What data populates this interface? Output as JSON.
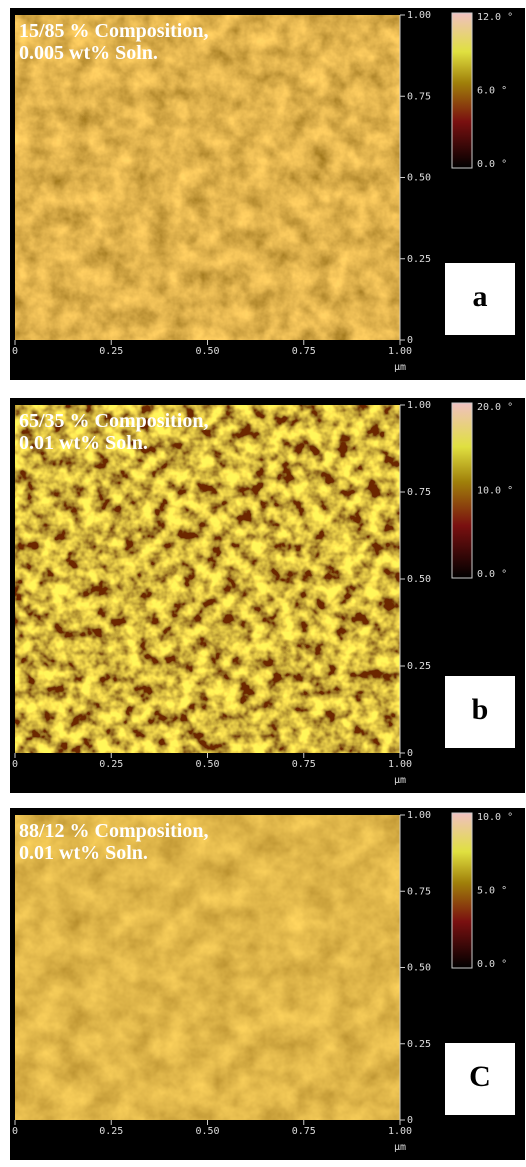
{
  "panels": [
    {
      "title": [
        "15/85 % Composition,",
        "0.005 wt% Soln."
      ],
      "x_ticks": [
        "0",
        "0.25",
        "0.50",
        "0.75",
        "1.00"
      ],
      "y_ticks": [
        "1.00",
        "0.75",
        "0.50",
        "0.25",
        "0"
      ],
      "unit": "µm",
      "colorbar": [
        "12.0 °",
        "6.0 °",
        "0.0 °"
      ],
      "label": "a"
    },
    {
      "title": [
        "65/35 % Composition,",
        "0.01 wt% Soln."
      ],
      "x_ticks": [
        "0",
        "0.25",
        "0.50",
        "0.75",
        "1.00"
      ],
      "y_ticks": [
        "1.00",
        "0.75",
        "0.50",
        "0.25",
        "0"
      ],
      "unit": "µm",
      "colorbar": [
        "20.0 °",
        "10.0 °",
        "0.0 °"
      ],
      "label": "b"
    },
    {
      "title": [
        "88/12 % Composition,",
        "0.01 wt% Soln."
      ],
      "x_ticks": [
        "0",
        "0.25",
        "0.50",
        "0.75",
        "1.00"
      ],
      "y_ticks": [
        "1.00",
        "0.75",
        "0.50",
        "0.25",
        "0"
      ],
      "unit": "µm",
      "colorbar": [
        "10.0 °",
        "5.0 °",
        "0.0 °"
      ],
      "label": "C"
    }
  ]
}
